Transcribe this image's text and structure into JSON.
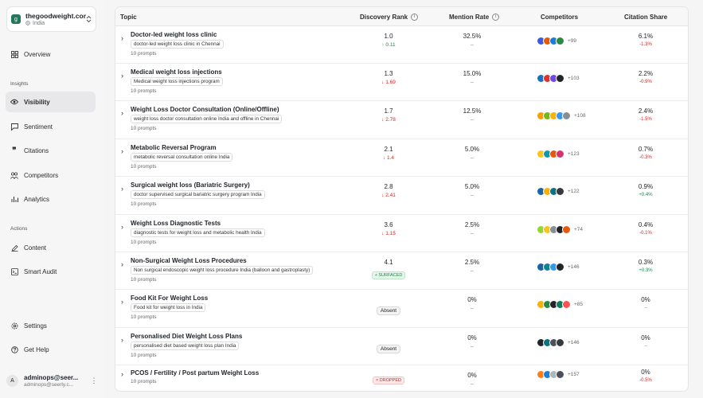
{
  "workspace": {
    "logo": "g",
    "name": "thegoodweight.com",
    "region": "India"
  },
  "nav": {
    "overview": "Overview",
    "insights_label": "Insights",
    "visibility": "Visibility",
    "sentiment": "Sentiment",
    "citations": "Citations",
    "competitors": "Competitors",
    "analytics": "Analytics",
    "actions_label": "Actions",
    "content": "Content",
    "smart_audit": "Smart Audit",
    "settings": "Settings",
    "get_help": "Get Help"
  },
  "user": {
    "initial": "A",
    "name": "adminops@seer...",
    "email": "adminops@seerly.c..."
  },
  "table": {
    "headers": {
      "topic": "Topic",
      "discovery_rank": "Discovery Rank",
      "mention_rate": "Mention Rate",
      "competitors": "Competitors",
      "citation_share": "Citation Share"
    },
    "rows": [
      {
        "title": "Doctor-led weight loss clinic",
        "prompt": "doctor-led weight loss clinic in Chennai",
        "prompts": "10 prompts",
        "rank": "1.0",
        "rank_delta": "↑ 0.11",
        "mention": "32.5%",
        "mention_sub": "–",
        "competitors_more": "+99",
        "citation": "6.1%",
        "citation_delta": "-1.3%"
      },
      {
        "title": "Medical weight loss injections",
        "prompt": "Medical weight loss injections program",
        "prompts": "10 prompts",
        "rank": "1.3",
        "rank_delta": "↓ 1.69",
        "mention": "15.0%",
        "mention_sub": "–",
        "competitors_more": "+103",
        "citation": "2.2%",
        "citation_delta": "-0.9%"
      },
      {
        "title": "Weight Loss Doctor Consultation (Online/Offline)",
        "prompt": "weight loss doctor consultation online India and offline in Chennai",
        "prompts": "10 prompts",
        "rank": "1.7",
        "rank_delta": "↓ 2.78",
        "mention": "12.5%",
        "mention_sub": "–",
        "competitors_more": "+108",
        "citation": "2.4%",
        "citation_delta": "-1.5%"
      },
      {
        "title": "Metabolic Reversal Program",
        "prompt": "metabolic reversal consultation online India",
        "prompts": "10 prompts",
        "rank": "2.1",
        "rank_delta": "↓ 1.4",
        "mention": "5.0%",
        "mention_sub": "–",
        "competitors_more": "+123",
        "citation": "0.7%",
        "citation_delta": "-0.3%"
      },
      {
        "title": "Surgical weight loss (Bariatric Surgery)",
        "prompt": "doctor supervised surgical bariatric surgery program India",
        "prompts": "10 prompts",
        "rank": "2.8",
        "rank_delta": "↓ 2.41",
        "mention": "5.0%",
        "mention_sub": "–",
        "competitors_more": "+122",
        "citation": "0.9%",
        "citation_delta": "+0.4%"
      },
      {
        "title": "Weight Loss Diagnostic Tests",
        "prompt": "diagnostic tests for weight loss and metabolic health India",
        "prompts": "10 prompts",
        "rank": "3.6",
        "rank_delta": "↓ 1.15",
        "mention": "2.5%",
        "mention_sub": "–",
        "competitors_more": "+74",
        "citation": "0.4%",
        "citation_delta": "-0.1%"
      },
      {
        "title": "Non-Surgical Weight Loss Procedures",
        "prompt": "Non surgical endoscopic weight loss procedure India (balloon and gastroplasty)",
        "prompts": "10 prompts",
        "rank": "4.1",
        "rank_badge": "+ SURFACED",
        "mention": "2.5%",
        "mention_sub": "–",
        "competitors_more": "+146",
        "citation": "0.3%",
        "citation_delta": "+0.3%"
      },
      {
        "title": "Food Kit For Weight Loss",
        "prompt": "Food kit for weight loss in India",
        "prompts": "10 prompts",
        "rank_absent": "Absent",
        "mention": "0%",
        "mention_sub": "–",
        "competitors_more": "+85",
        "citation": "0%",
        "citation_delta": "–"
      },
      {
        "title": "Personalised Diet Weight Loss Plans",
        "prompt": "personalised diet based weight loss plan India",
        "prompts": "10 prompts",
        "rank_absent": "Absent",
        "mention": "0%",
        "mention_sub": "–",
        "competitors_more": "+146",
        "citation": "0%",
        "citation_delta": "–"
      },
      {
        "title": "PCOS / Fertility / Post partum Weight Loss",
        "prompts": "10 prompts",
        "rank_drop": "× DROPPED",
        "mention": "0%",
        "mention_sub": "–",
        "competitors_more": "+157",
        "citation": "0%",
        "citation_delta": "-0.5%"
      }
    ]
  },
  "colors": {
    "accent": "#22775b",
    "positive": "#1a8a4a",
    "negative": "#d02626"
  },
  "icons": [
    "overview-icon",
    "eye-icon",
    "chat-bubble-icon",
    "quote-icon",
    "competitors-icon",
    "analytics-icon",
    "edit-icon",
    "terminal-icon",
    "gear-icon",
    "help-icon",
    "chevron-right-icon",
    "info-icon",
    "more-vertical-icon",
    "pin-icon",
    "sort-icon"
  ]
}
